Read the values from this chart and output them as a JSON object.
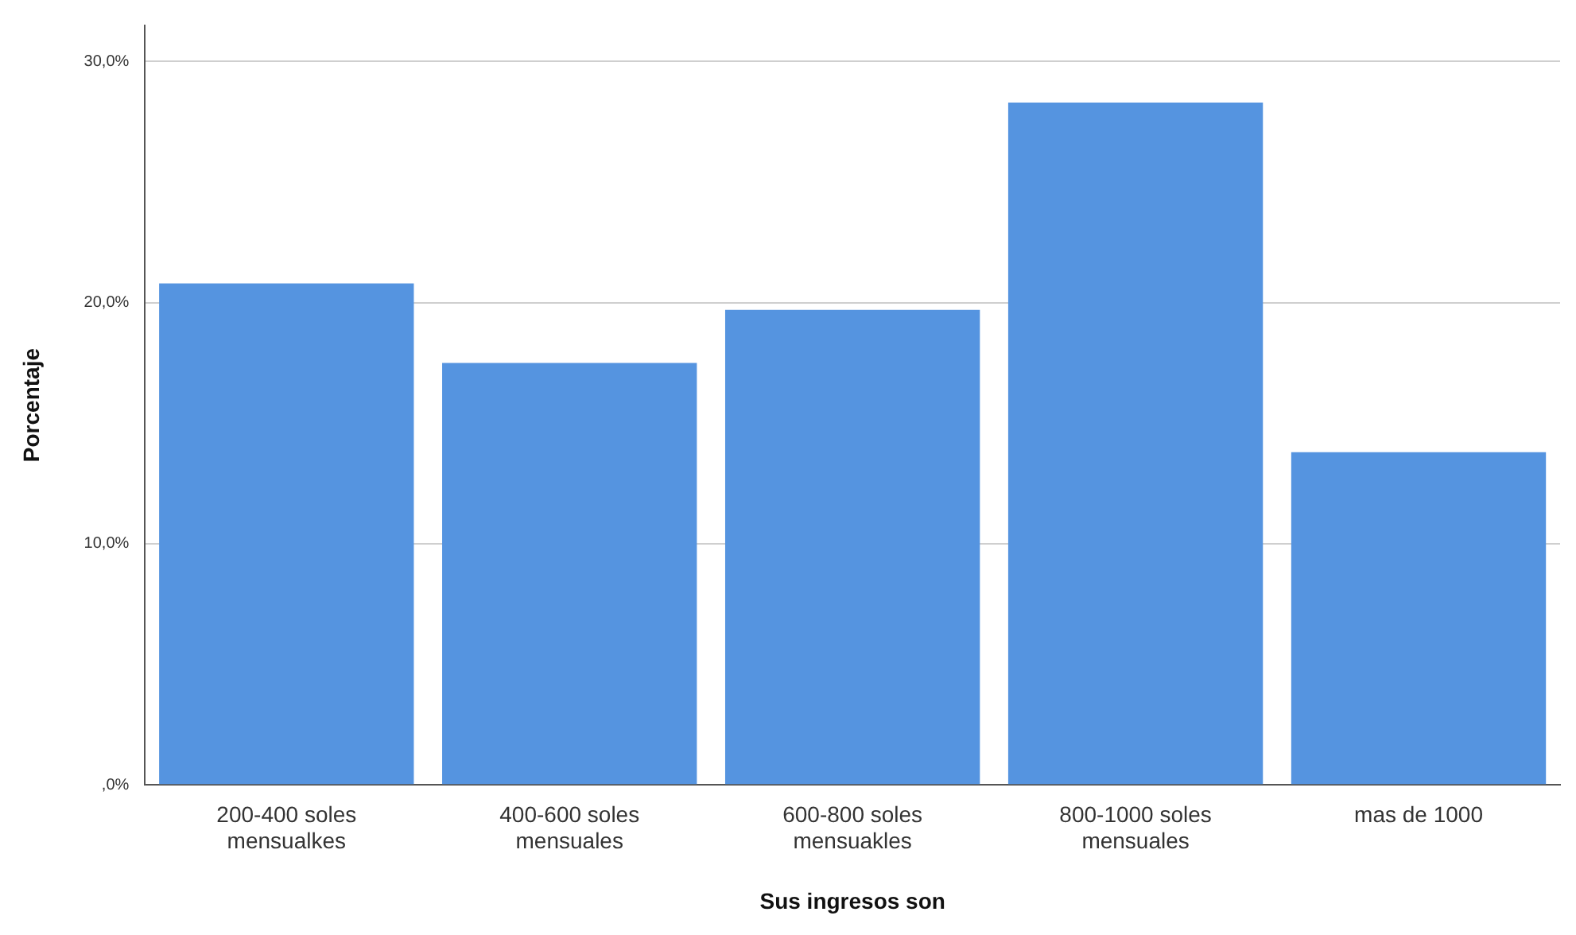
{
  "chart_data": {
    "type": "bar",
    "xlabel": "Sus ingresos son",
    "ylabel": "Porcentaje",
    "categories": [
      "200-400 soles\nmensualkes",
      "400-600 soles\nmensuales",
      "600-800 soles\nmensuakles",
      "800-1000 soles\nmensuales",
      "mas de 1000"
    ],
    "values": [
      20.8,
      17.5,
      19.7,
      28.3,
      13.8
    ],
    "color": "#5594e0",
    "ylim": [
      0,
      31.5
    ],
    "yticks": [
      {
        "value": 0,
        "label": ",0%"
      },
      {
        "value": 10,
        "label": "10,0%"
      },
      {
        "value": 20,
        "label": "20,0%"
      },
      {
        "value": 30,
        "label": "30,0%"
      }
    ],
    "grid": "y"
  }
}
